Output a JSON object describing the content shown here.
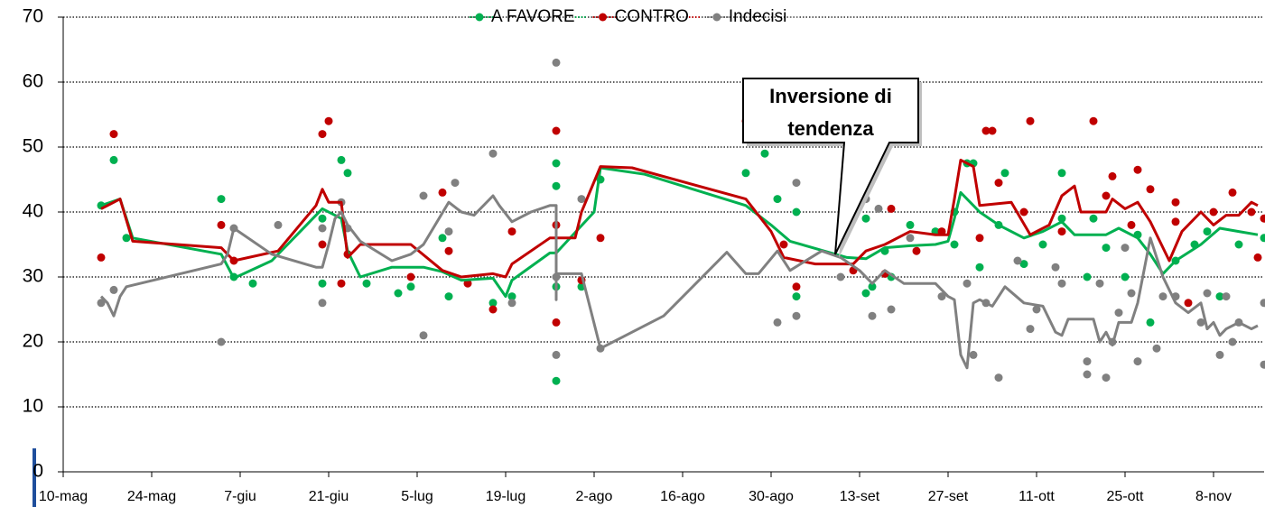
{
  "chart_data": {
    "type": "scatter-trend",
    "annotation": [
      "Inversione di",
      "tendenza"
    ],
    "xlim": [
      0,
      190
    ],
    "ylim": [
      0,
      70
    ],
    "yticks": [
      0,
      10,
      20,
      30,
      40,
      50,
      60,
      70
    ],
    "xticks": [
      {
        "value": 0,
        "label": "10-mag"
      },
      {
        "value": 14,
        "label": "24-mag"
      },
      {
        "value": 28,
        "label": "7-giu"
      },
      {
        "value": 42,
        "label": "21-giu"
      },
      {
        "value": 56,
        "label": "5-lug"
      },
      {
        "value": 70,
        "label": "19-lug"
      },
      {
        "value": 84,
        "label": "2-ago"
      },
      {
        "value": 98,
        "label": "16-ago"
      },
      {
        "value": 112,
        "label": "30-ago"
      },
      {
        "value": 126,
        "label": "13-set"
      },
      {
        "value": 140,
        "label": "27-set"
      },
      {
        "value": 154,
        "label": "11-ott"
      },
      {
        "value": 168,
        "label": "25-ott"
      },
      {
        "value": 182,
        "label": "8-nov"
      }
    ],
    "grid": true,
    "series": [
      {
        "name": "A FAVORE",
        "color": "#00b050",
        "x": [
          6,
          8,
          10,
          25,
          27,
          30,
          41,
          41,
          44,
          45,
          48,
          53,
          55,
          60,
          61,
          68,
          71,
          78,
          78,
          78,
          78,
          82,
          85,
          108,
          111,
          113,
          116,
          116,
          125,
          127,
          127,
          128,
          130,
          131,
          134,
          138,
          141,
          141,
          143,
          144,
          145,
          148,
          149,
          152,
          155,
          158,
          158,
          162,
          163,
          165,
          168,
          170,
          172,
          176,
          179,
          181,
          183,
          186,
          190
        ],
        "values": [
          41,
          48,
          36,
          42,
          30,
          29,
          29,
          39,
          48,
          46,
          29,
          27.5,
          28.5,
          36,
          27,
          26,
          27,
          28.5,
          44,
          47.5,
          14,
          28.5,
          45,
          46,
          49,
          42,
          40,
          27,
          39,
          39,
          27.5,
          28.5,
          34,
          30,
          38,
          37,
          35,
          40,
          47.5,
          47.5,
          31.5,
          38,
          46,
          32,
          35,
          46,
          39,
          30,
          39,
          34.5,
          30,
          36.5,
          23,
          32.5,
          35,
          37,
          27,
          35,
          36
        ],
        "line_x": [
          6,
          9,
          11,
          25,
          27,
          33,
          40,
          41,
          44,
          45,
          47,
          52,
          57,
          60,
          63,
          68,
          70,
          71,
          77,
          78,
          84,
          85,
          92,
          108,
          112,
          115,
          124,
          127,
          130,
          134,
          138,
          140,
          141,
          142,
          145,
          148,
          152,
          155,
          158,
          160,
          165,
          167,
          170,
          172,
          174,
          176,
          180,
          183,
          186,
          189
        ],
        "line_values": [
          41,
          42,
          36,
          33.5,
          29.8,
          32.5,
          39.5,
          40.5,
          39,
          34,
          30,
          31.5,
          31.5,
          30.8,
          29.5,
          29.8,
          27,
          29.5,
          33.7,
          33.7,
          40,
          46.8,
          45.8,
          41,
          38,
          35.5,
          33,
          32.8,
          34.5,
          34.8,
          35,
          35.5,
          39,
          43,
          40,
          38,
          36,
          37,
          38.5,
          36.5,
          36.5,
          37.5,
          36,
          33.5,
          30.5,
          32.5,
          35,
          37.5,
          37,
          36.5
        ]
      },
      {
        "name": "CONTRO",
        "color": "#c00000",
        "x": [
          6,
          8,
          25,
          27,
          41,
          41,
          42,
          44,
          45,
          55,
          60,
          61,
          64,
          68,
          71,
          78,
          78,
          78,
          82,
          85,
          108,
          111,
          114,
          116,
          125,
          130,
          131,
          135,
          139,
          145,
          146,
          147,
          148,
          152,
          153,
          158,
          163,
          165,
          166,
          169,
          170,
          172,
          176,
          176,
          178,
          182,
          185,
          188,
          189,
          190,
          191
        ],
        "values": [
          33,
          52,
          38,
          32.5,
          35,
          52,
          54,
          29,
          33.5,
          30,
          43,
          34,
          29,
          25,
          37,
          52.5,
          23,
          38,
          29.5,
          36,
          54,
          51,
          35,
          28.5,
          31,
          30.5,
          40.5,
          34,
          37,
          36,
          52.5,
          52.5,
          44.5,
          40,
          54,
          37,
          54,
          42.5,
          45.5,
          38,
          46.5,
          43.5,
          41.5,
          38.5,
          26,
          40,
          43,
          40,
          33,
          39,
          44.5
        ],
        "line_x": [
          6,
          9,
          11,
          25,
          27,
          34,
          40,
          41,
          42,
          44,
          45,
          47,
          55,
          60,
          63,
          68,
          70,
          71,
          77,
          81,
          82,
          85,
          90,
          108,
          112,
          114,
          119,
          125,
          127,
          130,
          134,
          138,
          140,
          141,
          142,
          144,
          145,
          150,
          153,
          156,
          158,
          160,
          161,
          165,
          166,
          168,
          170,
          172,
          175,
          177,
          180,
          182,
          184,
          186,
          188,
          189
        ],
        "line_values": [
          40.5,
          42,
          35.5,
          34.5,
          32.5,
          34,
          41,
          43.5,
          41.5,
          41.5,
          33,
          35,
          35,
          31,
          30,
          30.5,
          30,
          32,
          36,
          36,
          40,
          47,
          46.8,
          42,
          37,
          33,
          32,
          32,
          34,
          35,
          37,
          36.5,
          36.5,
          42,
          48,
          47,
          41,
          41.5,
          36.5,
          38,
          42.5,
          44,
          40,
          40,
          42,
          40.5,
          41.5,
          38.5,
          32.5,
          37,
          40,
          38,
          39.5,
          39.5,
          41.5,
          41
        ]
      },
      {
        "name": "Indecisi",
        "color": "#808080",
        "x": [
          6,
          8,
          25,
          27,
          34,
          41,
          41,
          44,
          45,
          57,
          57,
          61,
          62,
          68,
          71,
          78,
          78,
          78,
          82,
          85,
          113,
          116,
          116,
          123,
          127,
          129,
          128,
          131,
          134,
          139,
          143,
          144,
          146,
          148,
          151,
          153,
          154,
          157,
          158,
          162,
          162,
          164,
          165,
          166,
          167,
          168,
          169,
          170,
          173,
          174,
          176,
          180,
          181,
          183,
          184,
          185,
          186,
          190,
          190
        ],
        "values": [
          26,
          28,
          20,
          37.5,
          38,
          26,
          37.5,
          41.5,
          37.5,
          42.5,
          21,
          37,
          44.5,
          49,
          26,
          63,
          18,
          30,
          42,
          19,
          23,
          44.5,
          24,
          30,
          42,
          40.5,
          24,
          25,
          36,
          27,
          29,
          18,
          26,
          14.5,
          32.5,
          22,
          25,
          31.5,
          29,
          17,
          15,
          29,
          14.5,
          20,
          24.5,
          34.5,
          27.5,
          17,
          19,
          27,
          27,
          23,
          27.5,
          18,
          27,
          20,
          23,
          16.5,
          26
        ],
        "line_x": [
          6,
          7,
          8,
          9,
          10,
          25,
          26,
          27,
          33,
          40,
          41,
          42,
          43,
          44,
          45,
          47,
          52,
          55,
          57,
          61,
          63,
          65,
          68,
          69,
          71,
          74,
          77,
          78,
          78,
          78,
          82,
          85,
          95,
          105,
          108,
          110,
          113,
          115,
          120,
          123,
          126,
          128,
          130,
          133,
          138,
          140,
          141,
          142,
          143,
          144,
          145,
          147,
          149,
          152,
          155,
          157,
          158,
          159,
          163,
          164,
          165,
          166,
          167,
          169,
          170,
          172,
          174,
          176,
          178,
          180,
          181,
          182,
          183,
          184,
          186,
          188,
          189
        ],
        "line_values": [
          27,
          26,
          24,
          27,
          28.5,
          32,
          33.5,
          37.5,
          33.5,
          31.5,
          31.5,
          35,
          39,
          40,
          38,
          35.5,
          32.5,
          33.5,
          35,
          41.5,
          40,
          39.5,
          42.5,
          41,
          38.5,
          40,
          41,
          41,
          26.5,
          30.5,
          30.5,
          19,
          24,
          33.8,
          30.5,
          30.5,
          34,
          31,
          34,
          33,
          31,
          29,
          31,
          29,
          29,
          27,
          26.5,
          18,
          16,
          26,
          26.5,
          25.5,
          28.5,
          26,
          25.5,
          21.5,
          21,
          23.5,
          23.5,
          20,
          21.5,
          19.5,
          23,
          23,
          26,
          36,
          30,
          26,
          24.5,
          26,
          22,
          23,
          21,
          22,
          23,
          22,
          22.5
        ]
      }
    ]
  }
}
